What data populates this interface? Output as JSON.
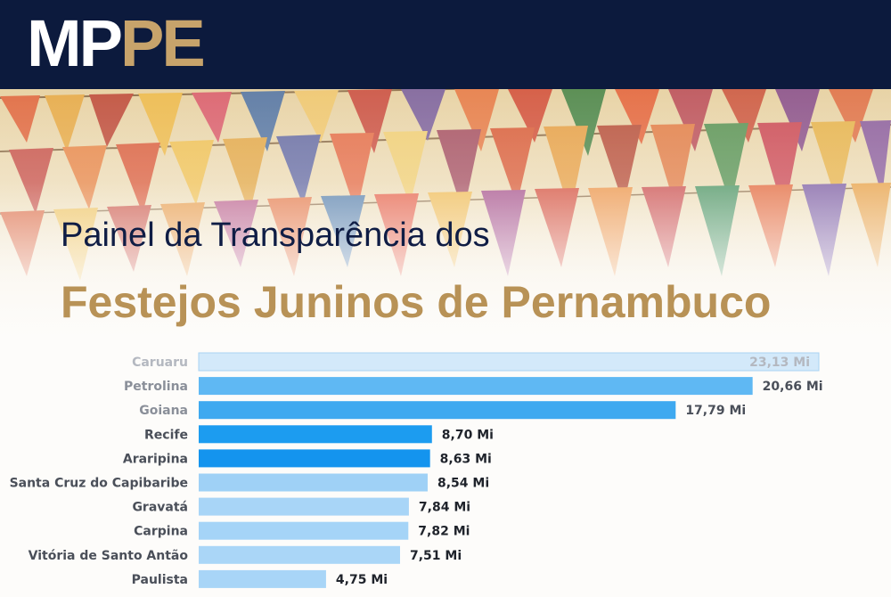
{
  "header": {
    "logo_part1": "MP",
    "logo_part2": "PE",
    "logo_color_dark": "#ffffff",
    "logo_color_gold": "#c7a36b",
    "bar_color": "#0c1a3d"
  },
  "banner": {
    "subtitle": "Painel da Transparência dos",
    "title": "Festejos Juninos de Pernambuco",
    "subtitle_color": "#0f1d45",
    "title_color": "#b89256"
  },
  "chart_data": {
    "type": "bar",
    "orientation": "horizontal",
    "categories": [
      "Caruaru",
      "Petrolina",
      "Goiana",
      "Recife",
      "Araripina",
      "Santa Cruz do Capibaribe",
      "Gravatá",
      "Carpina",
      "Vitória de Santo Antão",
      "Paulista"
    ],
    "values": [
      23.13,
      20.66,
      17.79,
      8.7,
      8.63,
      8.54,
      7.84,
      7.82,
      7.51,
      4.75
    ],
    "value_labels": [
      "23,13 Mi",
      "20,66 Mi",
      "17,79 Mi",
      "8,70 Mi",
      "8,63 Mi",
      "8,54 Mi",
      "7,84 Mi",
      "7,82 Mi",
      "7,51 Mi",
      "4,75 Mi"
    ],
    "bar_colors": [
      "#d3e9fa",
      "#5fb8f3",
      "#3ea9f0",
      "#1c9cf0",
      "#1494ee",
      "#9fd1f6",
      "#a8d5f7",
      "#a5d4f7",
      "#aad6f7",
      "#a8d5f7"
    ],
    "xlim": [
      0,
      23.13
    ],
    "grid": false,
    "legend": "none"
  }
}
